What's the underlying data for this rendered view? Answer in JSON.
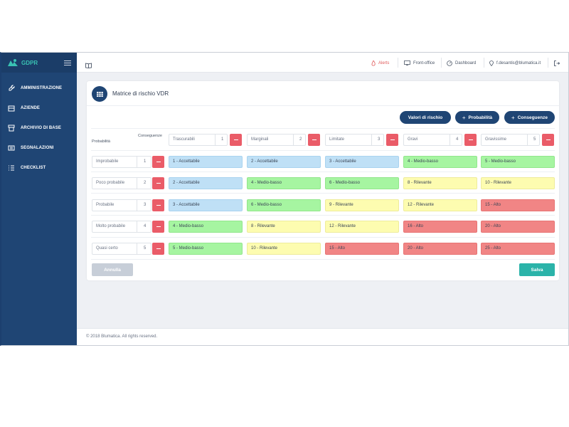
{
  "brand": {
    "name": "GDPR"
  },
  "sidebar": {
    "items": [
      {
        "label": "AMMINISTRAZIONE",
        "icon": "wrench-icon"
      },
      {
        "label": "AZIENDE",
        "icon": "building-icon"
      },
      {
        "label": "ARCHIVIO DI BASE",
        "icon": "archive-icon"
      },
      {
        "label": "SEGNALAZIONI",
        "icon": "report-icon"
      },
      {
        "label": "CHECKLIST",
        "icon": "checklist-icon"
      }
    ]
  },
  "topbar": {
    "alerts": "Alerts",
    "frontoffice": "Front-office",
    "dashboard": "Dashboard",
    "user": "f.desantis@blumatica.it"
  },
  "card": {
    "title": "Matrice di rischio VDR",
    "buttons": {
      "valori": "Valori di rischio",
      "probabilita": "Probabilità",
      "conseguenze": "Conseguenze"
    },
    "header_consequences": "Conseguenze",
    "header_probability": "Probabilità",
    "consequences": [
      {
        "label": "Trascurabili",
        "value": "1"
      },
      {
        "label": "Marginali",
        "value": "2"
      },
      {
        "label": "Limitate",
        "value": "3"
      },
      {
        "label": "Gravi",
        "value": "4"
      },
      {
        "label": "Gravissime",
        "value": "5"
      }
    ],
    "probabilities": [
      {
        "label": "Improbabile",
        "value": "1"
      },
      {
        "label": "Poco probabile",
        "value": "2"
      },
      {
        "label": "Probabile",
        "value": "3"
      },
      {
        "label": "Molto probabile",
        "value": "4"
      },
      {
        "label": "Quasi certo",
        "value": "5"
      }
    ],
    "matrix": [
      [
        {
          "text": "1 - Accettabile",
          "level": "blue"
        },
        {
          "text": "2 - Accettabile",
          "level": "blue"
        },
        {
          "text": "3 - Accettabile",
          "level": "blue"
        },
        {
          "text": "4 - Medio-basso",
          "level": "green"
        },
        {
          "text": "5 - Medio-basso",
          "level": "green"
        }
      ],
      [
        {
          "text": "2 - Accettabile",
          "level": "blue"
        },
        {
          "text": "4 - Medio-basso",
          "level": "green"
        },
        {
          "text": "6 - Medio-basso",
          "level": "green"
        },
        {
          "text": "8 - Rilevante",
          "level": "yellow"
        },
        {
          "text": "10 - Rilevante",
          "level": "yellow"
        }
      ],
      [
        {
          "text": "3 - Accettabile",
          "level": "blue"
        },
        {
          "text": "6 - Medio-basso",
          "level": "green"
        },
        {
          "text": "9 - Rilevante",
          "level": "yellow"
        },
        {
          "text": "12 - Rilevante",
          "level": "yellow"
        },
        {
          "text": "15 - Alto",
          "level": "red"
        }
      ],
      [
        {
          "text": "4 - Medio-basso",
          "level": "green"
        },
        {
          "text": "8 - Rilevante",
          "level": "yellow"
        },
        {
          "text": "12 - Rilevante",
          "level": "yellow"
        },
        {
          "text": "16 - Alto",
          "level": "red"
        },
        {
          "text": "20 - Alto",
          "level": "red"
        }
      ],
      [
        {
          "text": "5 - Medio-basso",
          "level": "green"
        },
        {
          "text": "10 - Rilevante",
          "level": "yellow"
        },
        {
          "text": "15 - Alto",
          "level": "red"
        },
        {
          "text": "20 - Alto",
          "level": "red"
        },
        {
          "text": "25 - Alto",
          "level": "red"
        }
      ]
    ],
    "cancel": "Annulla",
    "save": "Salva"
  },
  "footer": {
    "copyright": "© 2018 Blumatica. All rights reserved."
  },
  "colors": {
    "sidebar": "#1f4574",
    "accent_teal": "#2bb3a9",
    "danger": "#ea5c68",
    "level_blue": "#bfe0f6",
    "level_green": "#a6f5a1",
    "level_yellow": "#fdfcb0",
    "level_red": "#f18585"
  }
}
